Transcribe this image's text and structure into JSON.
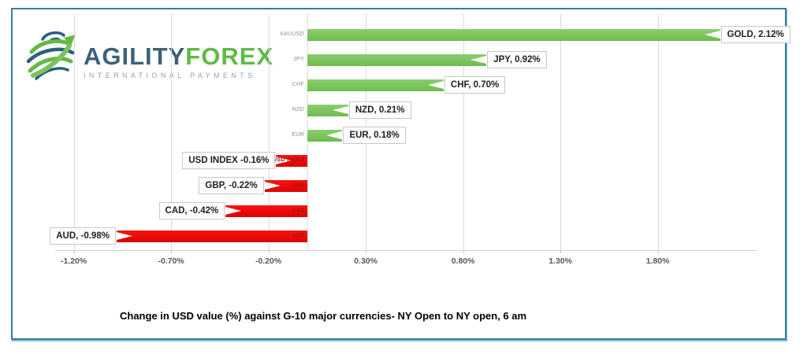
{
  "logo": {
    "brand_primary": "AGILITY",
    "brand_secondary": "FOREX",
    "tagline": "INTERNATIONAL PAYMENTS",
    "globe_icon_colors": {
      "dark": "#2B607E",
      "green": "#64B945"
    }
  },
  "chart_data": {
    "type": "bar",
    "orientation": "horizontal",
    "title": "Change in  USD value (%)  against  G-10 major currencies- NY Open to NY open, 6 am",
    "categories": [
      "XAUUSD",
      "JPY",
      "CHF",
      "NZD",
      "EUR",
      "USD INDEX",
      "GBP",
      "CAD",
      "AUD"
    ],
    "values": [
      2.12,
      0.92,
      0.7,
      0.21,
      0.18,
      -0.16,
      -0.22,
      -0.42,
      -0.98
    ],
    "data_labels": [
      "GOLD, 2.12%",
      "JPY, 0.92%",
      "CHF, 0.70%",
      "NZD, 0.21%",
      "EUR, 0.18%",
      "USD INDEX -0.16%",
      "GBP, -0.22%",
      "CAD, -0.42%",
      "AUD, -0.98%"
    ],
    "x_ticks": [
      "-1.20%",
      "-0.70%",
      "-0.20%",
      "0.30%",
      "0.80%",
      "1.30%",
      "1.80%"
    ],
    "x_tick_values": [
      -1.2,
      -0.7,
      -0.2,
      0.3,
      0.8,
      1.3,
      1.8
    ],
    "xlim": [
      -1.3,
      2.33
    ],
    "grid": true,
    "legend": "none",
    "positive_color": "#79C35B",
    "negative_color": "#EE0A0A",
    "gridline_color": "#D9D9D9",
    "tick_label_color": "#595959"
  },
  "caption": "Change in  USD value (%)  against  G-10 major currencies- NY Open to NY open, 6 am",
  "frame_border_color": "#2E7FA3"
}
